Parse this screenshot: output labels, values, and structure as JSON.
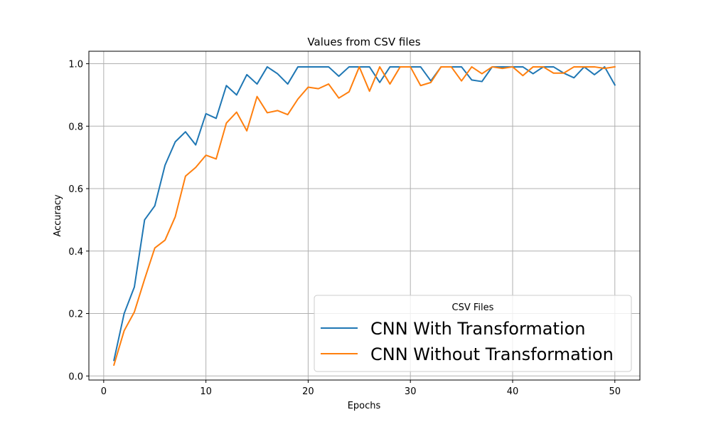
{
  "chart_data": {
    "type": "line",
    "title": "Values from CSV files",
    "xlabel": "Epochs",
    "ylabel": "Accuracy",
    "xlim": [
      -1.45,
      52.45
    ],
    "ylim": [
      -0.013,
      1.04
    ],
    "xticks": [
      0,
      10,
      20,
      30,
      40,
      50
    ],
    "yticks": [
      0.0,
      0.2,
      0.4,
      0.6,
      0.8,
      1.0
    ],
    "grid": true,
    "legend": {
      "title": "CSV Files",
      "placement": "lower-right"
    },
    "x": [
      1,
      2,
      3,
      4,
      5,
      6,
      7,
      8,
      9,
      10,
      11,
      12,
      13,
      14,
      15,
      16,
      17,
      18,
      19,
      20,
      21,
      22,
      23,
      24,
      25,
      26,
      27,
      28,
      29,
      30,
      31,
      32,
      33,
      34,
      35,
      36,
      37,
      38,
      39,
      40,
      41,
      42,
      43,
      44,
      45,
      46,
      47,
      48,
      49,
      50
    ],
    "series": [
      {
        "name": "CNN With Transformation",
        "color": "#1f77b4",
        "values": [
          0.05,
          0.2,
          0.285,
          0.5,
          0.545,
          0.675,
          0.75,
          0.782,
          0.74,
          0.84,
          0.825,
          0.93,
          0.9,
          0.965,
          0.935,
          0.99,
          0.968,
          0.935,
          0.99,
          0.99,
          0.99,
          0.99,
          0.96,
          0.99,
          0.99,
          0.99,
          0.94,
          0.99,
          0.99,
          0.99,
          0.99,
          0.945,
          0.99,
          0.99,
          0.99,
          0.948,
          0.943,
          0.99,
          0.99,
          0.99,
          0.99,
          0.968,
          0.99,
          0.99,
          0.97,
          0.955,
          0.99,
          0.965,
          0.99,
          0.932
        ]
      },
      {
        "name": "CNN Without Transformation",
        "color": "#ff7f0e",
        "values": [
          0.035,
          0.145,
          0.205,
          0.31,
          0.41,
          0.435,
          0.51,
          0.64,
          0.668,
          0.707,
          0.695,
          0.81,
          0.845,
          0.785,
          0.895,
          0.843,
          0.85,
          0.837,
          0.887,
          0.925,
          0.92,
          0.935,
          0.89,
          0.91,
          0.99,
          0.912,
          0.99,
          0.935,
          0.99,
          0.99,
          0.93,
          0.94,
          0.99,
          0.99,
          0.945,
          0.99,
          0.968,
          0.99,
          0.985,
          0.99,
          0.962,
          0.99,
          0.99,
          0.97,
          0.97,
          0.99,
          0.99,
          0.99,
          0.985,
          0.99
        ]
      }
    ]
  }
}
